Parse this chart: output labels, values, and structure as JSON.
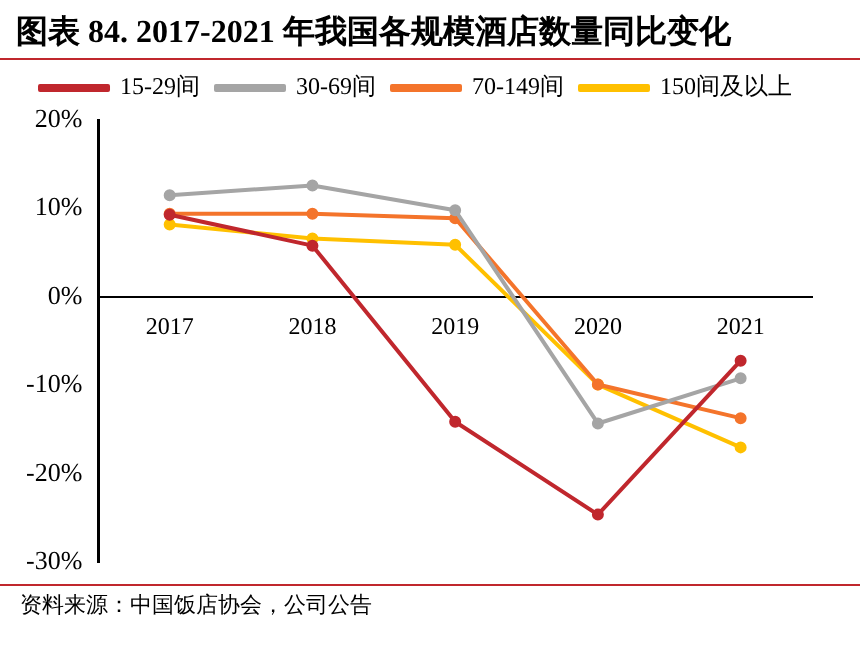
{
  "chart_data": {
    "type": "line",
    "title": "图表 84. 2017-2021 年我国各规模酒店数量同比变化",
    "categories": [
      "2017",
      "2018",
      "2019",
      "2020",
      "2021"
    ],
    "series": [
      {
        "name": "15-29间",
        "color": "#c0272d",
        "values": [
          9.3,
          5.8,
          -14.1,
          -24.6,
          -7.2
        ]
      },
      {
        "name": "30-69间",
        "color": "#a5a5a5",
        "values": [
          11.5,
          12.6,
          9.8,
          -14.3,
          -9.2
        ]
      },
      {
        "name": "70-149间",
        "color": "#f4742b",
        "values": [
          9.4,
          9.4,
          8.9,
          -9.9,
          -13.7
        ]
      },
      {
        "name": "150间及以上",
        "color": "#ffc000",
        "values": [
          8.2,
          6.6,
          5.9,
          -9.9,
          -17.0
        ]
      }
    ],
    "ylim": [
      -30,
      20
    ],
    "yticks": [
      {
        "value": -30,
        "label": "-30%"
      },
      {
        "value": -20,
        "label": "-20%"
      },
      {
        "value": -10,
        "label": "-10%"
      },
      {
        "value": 0,
        "label": "0%"
      },
      {
        "value": 10,
        "label": "10%"
      },
      {
        "value": 20,
        "label": "20%"
      }
    ],
    "grid": false,
    "legend": "top",
    "marker": "circle",
    "line_style": "solid",
    "annotations": [
      "资料来源：中国饭店协会，公司公告"
    ]
  }
}
